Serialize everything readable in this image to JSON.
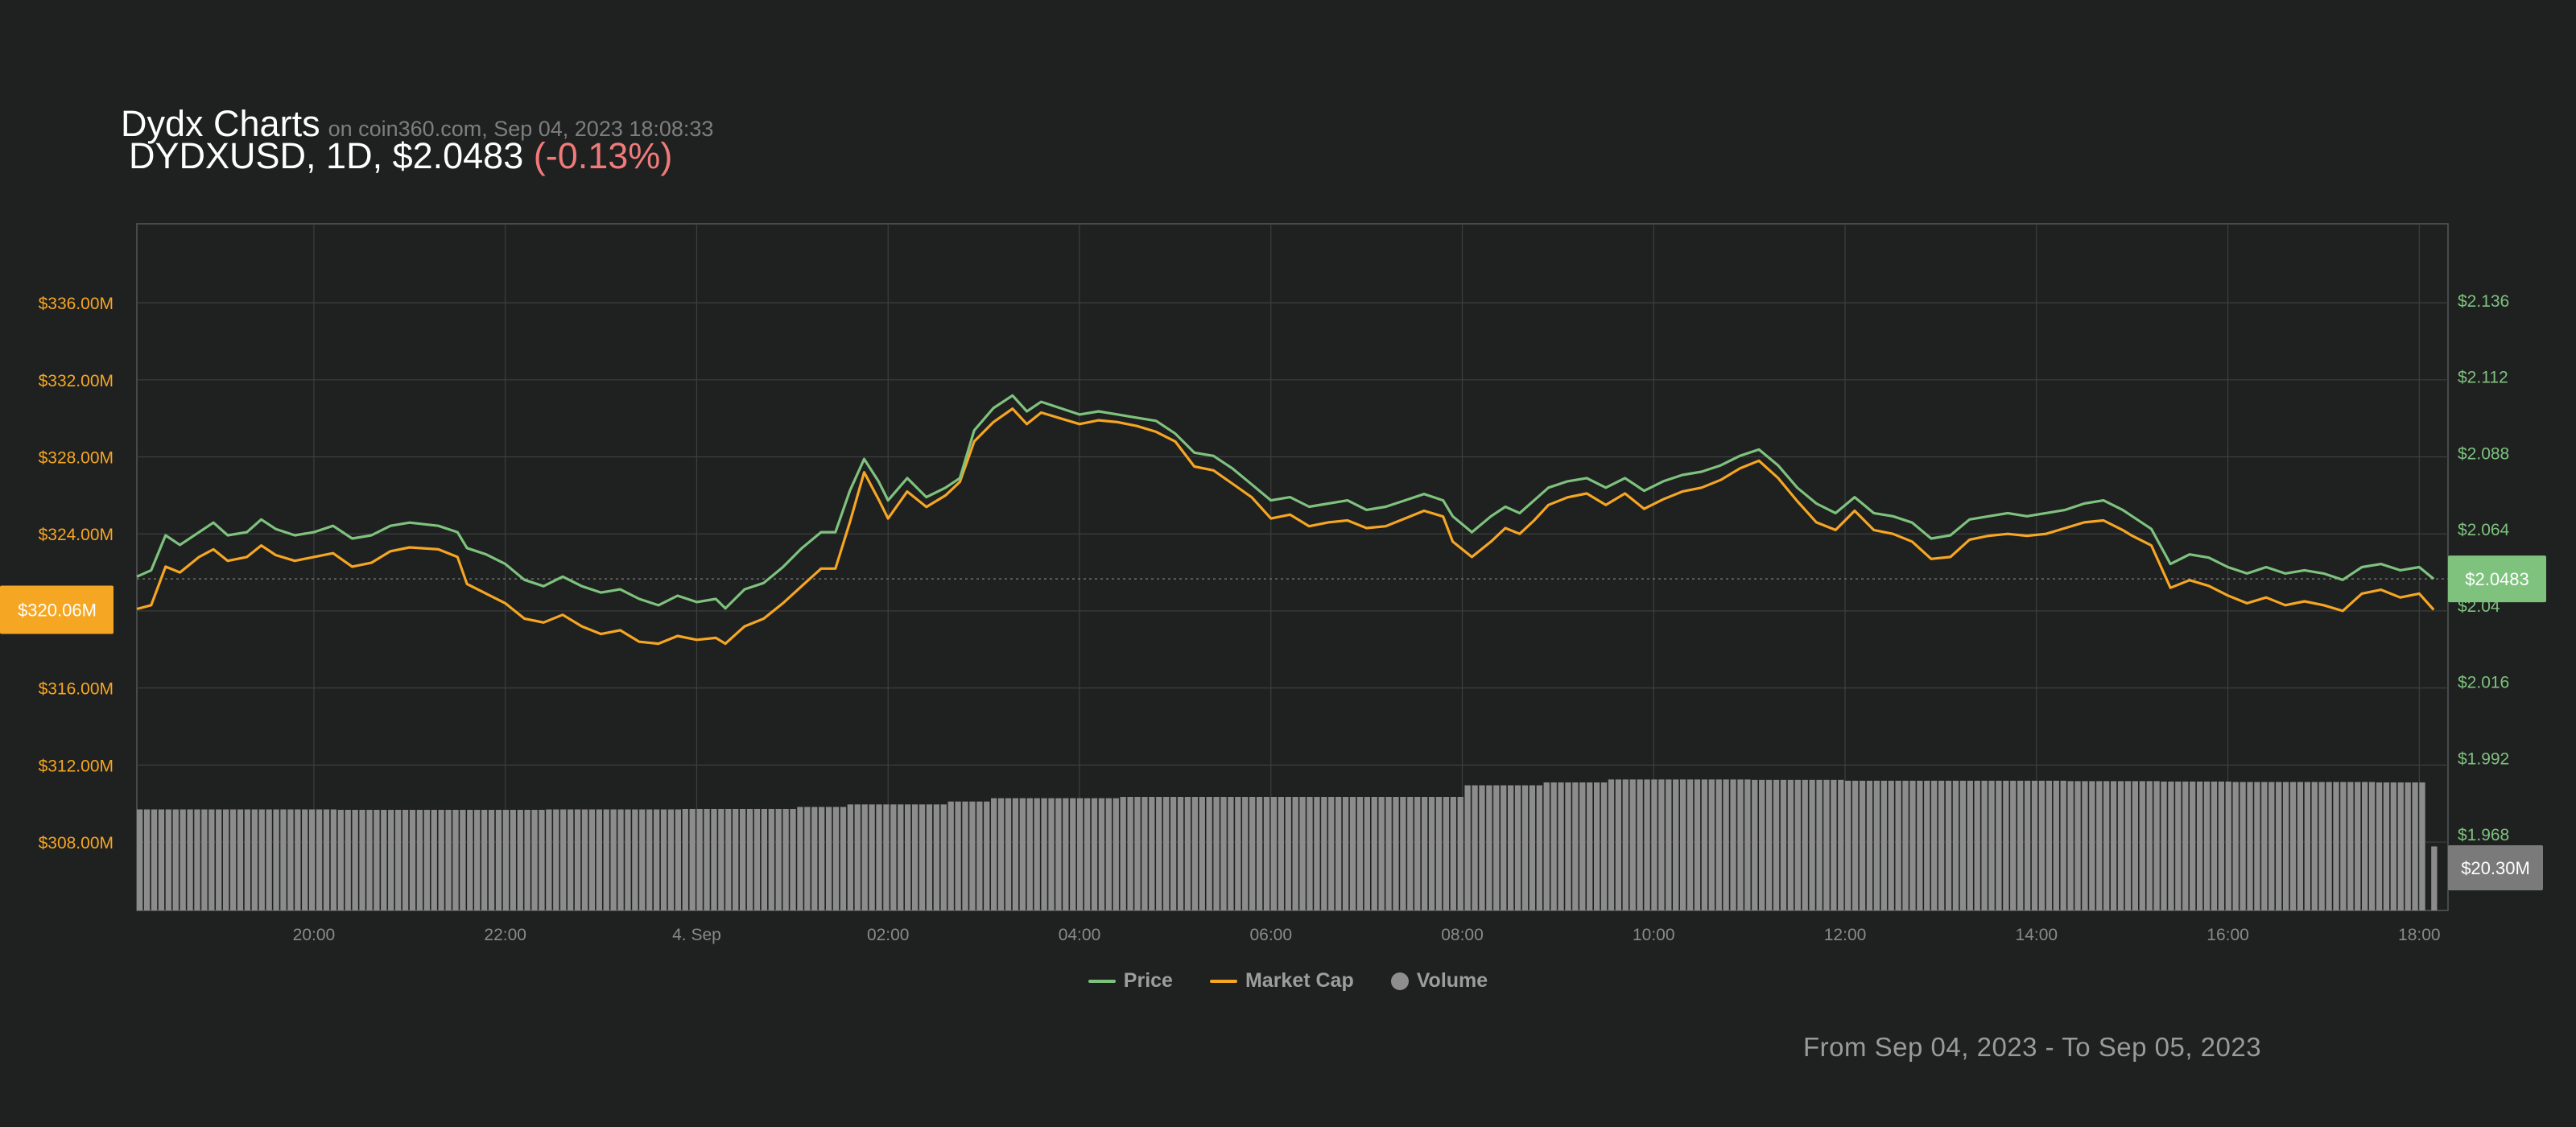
{
  "header": {
    "title": "Dydx Charts",
    "source": "on coin360.com, Sep 04, 2023 18:08:33",
    "pair_label": "DYDXUSD, 1D, $2.0483",
    "change": "(-0.13%)"
  },
  "footer": {
    "date_range": "From Sep 04, 2023 - To Sep 05, 2023"
  },
  "legend": {
    "price": "Price",
    "market_cap": "Market Cap",
    "volume": "Volume"
  },
  "colors": {
    "background": "#1f2020",
    "price": "#7ec27e",
    "market_cap": "#f5a623",
    "volume": "#8c8c8c",
    "grid": "#3d3f3f",
    "negative_change": "#f07a7a"
  },
  "chart_data": {
    "type": "line",
    "x_ticks": [
      "20:00",
      "22:00",
      "4. Sep",
      "02:00",
      "04:00",
      "06:00",
      "08:00",
      "10:00",
      "12:00",
      "14:00",
      "16:00",
      "18:00"
    ],
    "x_tick_hours": [
      20,
      22,
      24,
      26,
      28,
      30,
      32,
      34,
      36,
      38,
      40,
      42
    ],
    "x_range_hours": [
      18.15,
      42.3
    ],
    "left_axis": {
      "label": "Market Cap",
      "ticks": [
        "$308.00M",
        "$312.00M",
        "$316.00M",
        "$320.00M",
        "$324.00M",
        "$328.00M",
        "$332.00M",
        "$336.00M"
      ],
      "tick_values": [
        308,
        312,
        316,
        320,
        324,
        328,
        332,
        336
      ],
      "range": [
        304.45,
        340.1
      ],
      "current_label": "$320.06M"
    },
    "right_axis": {
      "label": "Price",
      "ticks": [
        "$1.968",
        "$1.992",
        "$2.016",
        "$2.04",
        "$2.064",
        "$2.088",
        "$2.112",
        "$2.136"
      ],
      "tick_values": [
        1.968,
        1.992,
        2.016,
        2.04,
        2.064,
        2.088,
        2.112,
        2.136
      ],
      "range": [
        1.944,
        2.16
      ],
      "current_label": "$2.0483"
    },
    "volume_current_label": "$20.30M",
    "series": [
      {
        "name": "Price",
        "axis": "right",
        "points": [
          [
            18.15,
            2.049
          ],
          [
            18.3,
            2.051
          ],
          [
            18.45,
            2.062
          ],
          [
            18.6,
            2.059
          ],
          [
            18.8,
            2.063
          ],
          [
            18.95,
            2.066
          ],
          [
            19.1,
            2.062
          ],
          [
            19.3,
            2.063
          ],
          [
            19.45,
            2.067
          ],
          [
            19.6,
            2.064
          ],
          [
            19.8,
            2.062
          ],
          [
            20.0,
            2.063
          ],
          [
            20.2,
            2.065
          ],
          [
            20.4,
            2.061
          ],
          [
            20.6,
            2.062
          ],
          [
            20.8,
            2.065
          ],
          [
            21.0,
            2.066
          ],
          [
            21.3,
            2.065
          ],
          [
            21.5,
            2.063
          ],
          [
            21.6,
            2.058
          ],
          [
            21.8,
            2.056
          ],
          [
            22.0,
            2.053
          ],
          [
            22.2,
            2.048
          ],
          [
            22.4,
            2.046
          ],
          [
            22.6,
            2.049
          ],
          [
            22.8,
            2.046
          ],
          [
            23.0,
            2.044
          ],
          [
            23.2,
            2.045
          ],
          [
            23.4,
            2.042
          ],
          [
            23.6,
            2.04
          ],
          [
            23.8,
            2.043
          ],
          [
            24.0,
            2.041
          ],
          [
            24.2,
            2.042
          ],
          [
            24.3,
            2.039
          ],
          [
            24.5,
            2.045
          ],
          [
            24.7,
            2.047
          ],
          [
            24.9,
            2.052
          ],
          [
            25.1,
            2.058
          ],
          [
            25.3,
            2.063
          ],
          [
            25.45,
            2.063
          ],
          [
            25.6,
            2.076
          ],
          [
            25.75,
            2.086
          ],
          [
            25.9,
            2.079
          ],
          [
            26.0,
            2.073
          ],
          [
            26.2,
            2.08
          ],
          [
            26.4,
            2.074
          ],
          [
            26.6,
            2.077
          ],
          [
            26.75,
            2.08
          ],
          [
            26.9,
            2.095
          ],
          [
            27.1,
            2.102
          ],
          [
            27.3,
            2.106
          ],
          [
            27.45,
            2.101
          ],
          [
            27.6,
            2.104
          ],
          [
            27.8,
            2.102
          ],
          [
            28.0,
            2.1
          ],
          [
            28.2,
            2.101
          ],
          [
            28.4,
            2.1
          ],
          [
            28.6,
            2.099
          ],
          [
            28.8,
            2.098
          ],
          [
            29.0,
            2.094
          ],
          [
            29.2,
            2.088
          ],
          [
            29.4,
            2.087
          ],
          [
            29.6,
            2.083
          ],
          [
            29.8,
            2.078
          ],
          [
            30.0,
            2.073
          ],
          [
            30.2,
            2.074
          ],
          [
            30.4,
            2.071
          ],
          [
            30.6,
            2.072
          ],
          [
            30.8,
            2.073
          ],
          [
            31.0,
            2.07
          ],
          [
            31.2,
            2.071
          ],
          [
            31.4,
            2.073
          ],
          [
            31.6,
            2.075
          ],
          [
            31.8,
            2.073
          ],
          [
            31.9,
            2.068
          ],
          [
            32.1,
            2.063
          ],
          [
            32.3,
            2.068
          ],
          [
            32.45,
            2.071
          ],
          [
            32.6,
            2.069
          ],
          [
            32.75,
            2.073
          ],
          [
            32.9,
            2.077
          ],
          [
            33.1,
            2.079
          ],
          [
            33.3,
            2.08
          ],
          [
            33.5,
            2.077
          ],
          [
            33.7,
            2.08
          ],
          [
            33.9,
            2.076
          ],
          [
            34.1,
            2.079
          ],
          [
            34.3,
            2.081
          ],
          [
            34.5,
            2.082
          ],
          [
            34.7,
            2.084
          ],
          [
            34.9,
            2.087
          ],
          [
            35.1,
            2.089
          ],
          [
            35.3,
            2.084
          ],
          [
            35.5,
            2.077
          ],
          [
            35.7,
            2.072
          ],
          [
            35.9,
            2.069
          ],
          [
            36.1,
            2.074
          ],
          [
            36.3,
            2.069
          ],
          [
            36.5,
            2.068
          ],
          [
            36.7,
            2.066
          ],
          [
            36.9,
            2.061
          ],
          [
            37.1,
            2.062
          ],
          [
            37.3,
            2.067
          ],
          [
            37.5,
            2.068
          ],
          [
            37.7,
            2.069
          ],
          [
            37.9,
            2.068
          ],
          [
            38.1,
            2.069
          ],
          [
            38.3,
            2.07
          ],
          [
            38.5,
            2.072
          ],
          [
            38.7,
            2.073
          ],
          [
            38.9,
            2.07
          ],
          [
            39.0,
            2.068
          ],
          [
            39.2,
            2.064
          ],
          [
            39.4,
            2.053
          ],
          [
            39.6,
            2.056
          ],
          [
            39.8,
            2.055
          ],
          [
            40.0,
            2.052
          ],
          [
            40.2,
            2.05
          ],
          [
            40.4,
            2.052
          ],
          [
            40.6,
            2.05
          ],
          [
            40.8,
            2.051
          ],
          [
            41.0,
            2.05
          ],
          [
            41.2,
            2.048
          ],
          [
            41.4,
            2.052
          ],
          [
            41.6,
            2.053
          ],
          [
            41.8,
            2.051
          ],
          [
            42.0,
            2.052
          ],
          [
            42.15,
            2.0483
          ]
        ]
      },
      {
        "name": "Market Cap",
        "axis": "left",
        "points": [
          [
            18.15,
            320.1
          ],
          [
            18.3,
            320.3
          ],
          [
            18.45,
            322.3
          ],
          [
            18.6,
            322.0
          ],
          [
            18.8,
            322.8
          ],
          [
            18.95,
            323.2
          ],
          [
            19.1,
            322.6
          ],
          [
            19.3,
            322.8
          ],
          [
            19.45,
            323.4
          ],
          [
            19.6,
            322.9
          ],
          [
            19.8,
            322.6
          ],
          [
            20.0,
            322.8
          ],
          [
            20.2,
            323.0
          ],
          [
            20.4,
            322.3
          ],
          [
            20.6,
            322.5
          ],
          [
            20.8,
            323.1
          ],
          [
            21.0,
            323.3
          ],
          [
            21.3,
            323.2
          ],
          [
            21.5,
            322.8
          ],
          [
            21.6,
            321.4
          ],
          [
            21.8,
            320.9
          ],
          [
            22.0,
            320.4
          ],
          [
            22.2,
            319.6
          ],
          [
            22.4,
            319.4
          ],
          [
            22.6,
            319.8
          ],
          [
            22.8,
            319.2
          ],
          [
            23.0,
            318.8
          ],
          [
            23.2,
            319.0
          ],
          [
            23.4,
            318.4
          ],
          [
            23.6,
            318.3
          ],
          [
            23.8,
            318.7
          ],
          [
            24.0,
            318.5
          ],
          [
            24.2,
            318.6
          ],
          [
            24.3,
            318.3
          ],
          [
            24.5,
            319.2
          ],
          [
            24.7,
            319.6
          ],
          [
            24.9,
            320.4
          ],
          [
            25.1,
            321.3
          ],
          [
            25.3,
            322.2
          ],
          [
            25.45,
            322.2
          ],
          [
            25.6,
            324.6
          ],
          [
            25.75,
            327.2
          ],
          [
            25.9,
            325.8
          ],
          [
            26.0,
            324.8
          ],
          [
            26.2,
            326.2
          ],
          [
            26.4,
            325.4
          ],
          [
            26.6,
            326.0
          ],
          [
            26.75,
            326.7
          ],
          [
            26.9,
            328.8
          ],
          [
            27.1,
            329.8
          ],
          [
            27.3,
            330.5
          ],
          [
            27.45,
            329.7
          ],
          [
            27.6,
            330.3
          ],
          [
            27.8,
            330.0
          ],
          [
            28.0,
            329.7
          ],
          [
            28.2,
            329.9
          ],
          [
            28.4,
            329.8
          ],
          [
            28.6,
            329.6
          ],
          [
            28.8,
            329.3
          ],
          [
            29.0,
            328.8
          ],
          [
            29.2,
            327.5
          ],
          [
            29.4,
            327.3
          ],
          [
            29.6,
            326.6
          ],
          [
            29.8,
            325.9
          ],
          [
            30.0,
            324.8
          ],
          [
            30.2,
            325.0
          ],
          [
            30.4,
            324.4
          ],
          [
            30.6,
            324.6
          ],
          [
            30.8,
            324.7
          ],
          [
            31.0,
            324.3
          ],
          [
            31.2,
            324.4
          ],
          [
            31.4,
            324.8
          ],
          [
            31.6,
            325.2
          ],
          [
            31.8,
            324.9
          ],
          [
            31.9,
            323.6
          ],
          [
            32.1,
            322.8
          ],
          [
            32.3,
            323.6
          ],
          [
            32.45,
            324.3
          ],
          [
            32.6,
            324.0
          ],
          [
            32.75,
            324.7
          ],
          [
            32.9,
            325.5
          ],
          [
            33.1,
            325.9
          ],
          [
            33.3,
            326.1
          ],
          [
            33.5,
            325.5
          ],
          [
            33.7,
            326.1
          ],
          [
            33.9,
            325.3
          ],
          [
            34.1,
            325.8
          ],
          [
            34.3,
            326.2
          ],
          [
            34.5,
            326.4
          ],
          [
            34.7,
            326.8
          ],
          [
            34.9,
            327.4
          ],
          [
            35.1,
            327.8
          ],
          [
            35.3,
            326.9
          ],
          [
            35.5,
            325.7
          ],
          [
            35.7,
            324.6
          ],
          [
            35.9,
            324.2
          ],
          [
            36.1,
            325.2
          ],
          [
            36.3,
            324.2
          ],
          [
            36.5,
            324.0
          ],
          [
            36.7,
            323.6
          ],
          [
            36.9,
            322.7
          ],
          [
            37.1,
            322.8
          ],
          [
            37.3,
            323.7
          ],
          [
            37.5,
            323.9
          ],
          [
            37.7,
            324.0
          ],
          [
            37.9,
            323.9
          ],
          [
            38.1,
            324.0
          ],
          [
            38.3,
            324.3
          ],
          [
            38.5,
            324.6
          ],
          [
            38.7,
            324.7
          ],
          [
            38.9,
            324.2
          ],
          [
            39.0,
            323.9
          ],
          [
            39.2,
            323.4
          ],
          [
            39.4,
            321.2
          ],
          [
            39.6,
            321.6
          ],
          [
            39.8,
            321.3
          ],
          [
            40.0,
            320.8
          ],
          [
            40.2,
            320.4
          ],
          [
            40.4,
            320.7
          ],
          [
            40.6,
            320.3
          ],
          [
            40.8,
            320.5
          ],
          [
            41.0,
            320.3
          ],
          [
            41.2,
            320.0
          ],
          [
            41.4,
            320.9
          ],
          [
            41.6,
            321.1
          ],
          [
            41.8,
            320.7
          ],
          [
            42.0,
            320.9
          ],
          [
            42.15,
            320.06
          ]
        ]
      },
      {
        "name": "Volume",
        "axis": "volume",
        "unit": "$M",
        "volume_range": [
          0,
          27.3
        ],
        "bars_from_hour": 18.15,
        "bars_to_hour": 42.05,
        "bar_step_hours": 0.075,
        "levels": [
          [
            18.15,
            24.3
          ],
          [
            20.2,
            24.2
          ],
          [
            22.4,
            24.3
          ],
          [
            23.8,
            24.4
          ],
          [
            25.0,
            24.9
          ],
          [
            25.5,
            25.5
          ],
          [
            26.6,
            26.2
          ],
          [
            27.0,
            27.0
          ],
          [
            28.4,
            27.3
          ],
          [
            32.0,
            30.1
          ],
          [
            32.8,
            30.8
          ],
          [
            33.5,
            31.5
          ],
          [
            35.0,
            31.4
          ],
          [
            36.0,
            31.2
          ],
          [
            38.3,
            31.1
          ],
          [
            39.3,
            31.0
          ],
          [
            40.0,
            30.9
          ],
          [
            41.5,
            30.8
          ]
        ],
        "last_bar": 15.4
      }
    ],
    "gridlines": true,
    "legend_position": "bottom-center"
  }
}
